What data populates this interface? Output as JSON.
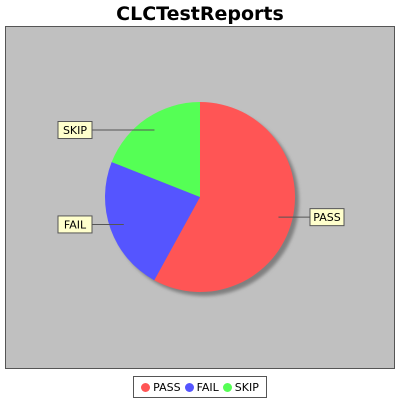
{
  "chart_data": {
    "type": "pie",
    "title": "CLCTestReports",
    "slices": [
      {
        "label": "PASS",
        "value": 58,
        "color": "#ff5555"
      },
      {
        "label": "FAIL",
        "value": 23,
        "color": "#5555ff"
      },
      {
        "label": "SKIP",
        "value": 19,
        "color": "#55ff55"
      }
    ],
    "legend_position": "bottom",
    "background_color": "#c0c0c0"
  }
}
